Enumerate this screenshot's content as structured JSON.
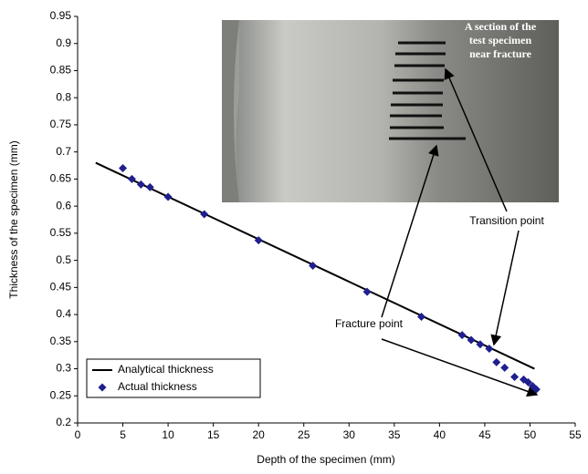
{
  "chart_data": {
    "type": "line",
    "x_label": "Depth of the specimen (mm)",
    "y_label": "Thickness of the specimen (mm)",
    "xlim": [
      0,
      55
    ],
    "xticks": [
      0,
      5,
      10,
      15,
      20,
      25,
      30,
      35,
      40,
      45,
      50,
      55
    ],
    "ylim": [
      0.2,
      0.95
    ],
    "yticks": [
      0.2,
      0.25,
      0.3,
      0.35,
      0.4,
      0.45,
      0.5,
      0.55,
      0.6,
      0.65,
      0.7,
      0.75,
      0.8,
      0.85,
      0.9,
      0.95
    ],
    "grid": false,
    "legend": "lower-left",
    "series": [
      {
        "name": "Analytical thickness",
        "color": "#000000",
        "style": "line",
        "x": [
          2,
          50.5
        ],
        "values": [
          0.68,
          0.3
        ]
      },
      {
        "name": "Actual thickness",
        "color": "#1f1f8f",
        "style": "scatter",
        "x": [
          5,
          6,
          7,
          8,
          10,
          14,
          20,
          26,
          32,
          38,
          42.5,
          43.5,
          44.5,
          45.5,
          46.3,
          47.2,
          48.3,
          49.3,
          49.8,
          50.3,
          50.7
        ],
        "values": [
          0.67,
          0.65,
          0.64,
          0.635,
          0.617,
          0.585,
          0.537,
          0.49,
          0.442,
          0.396,
          0.362,
          0.353,
          0.345,
          0.337,
          0.312,
          0.302,
          0.285,
          0.28,
          0.275,
          0.268,
          0.262
        ]
      }
    ],
    "annotations": [
      "Transition point",
      "Fracture point"
    ],
    "inset_caption": [
      "A section of the",
      "test specimen",
      "near fracture"
    ]
  }
}
